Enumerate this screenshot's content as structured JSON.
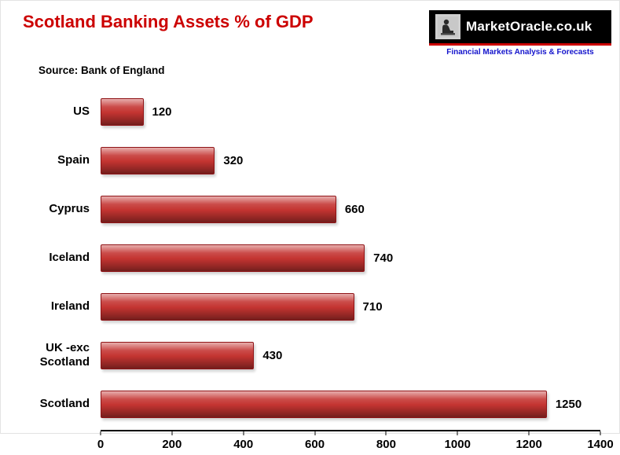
{
  "header": {
    "title": "Scotland Banking Assets % of GDP",
    "source": "Source: Bank of England"
  },
  "logo": {
    "name": "MarketOracle.co.uk",
    "tagline": "Financial Markets Analysis & Forecasts"
  },
  "chart_data": {
    "type": "bar",
    "orientation": "horizontal",
    "title": "Scotland Banking Assets % of GDP",
    "categories": [
      "US",
      "Spain",
      "Cyprus",
      "Iceland",
      "Ireland",
      "UK -exc Scotland",
      "Scotland"
    ],
    "values": [
      120,
      320,
      660,
      740,
      710,
      430,
      1250
    ],
    "xlabel": "",
    "ylabel": "",
    "xlim": [
      0,
      1400
    ],
    "xticks": [
      0,
      200,
      400,
      600,
      800,
      1000,
      1200,
      1400
    ],
    "grid": false,
    "legend": "none"
  },
  "colors": {
    "title": "#CC0000",
    "bar": "#C43431",
    "bar_border": "#8F1316",
    "tagline": "#1414CC",
    "logo_bg": "#000000",
    "logo_red_line": "#CC0000"
  }
}
